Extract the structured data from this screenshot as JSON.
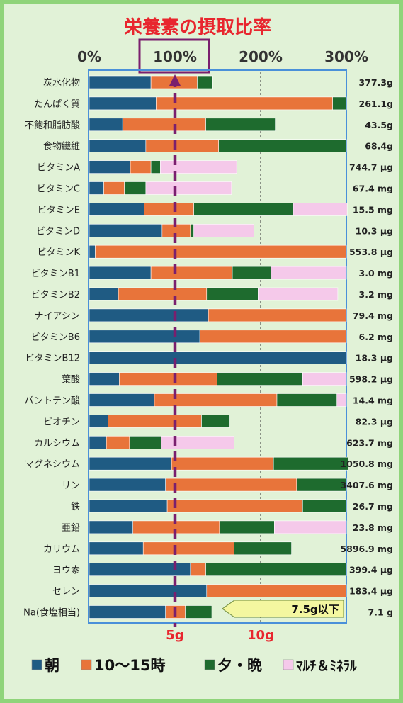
{
  "title": "栄養素の摂取比率",
  "x_ticks": [
    "0%",
    "100%",
    "200%",
    "300%"
  ],
  "salt_ticks": [
    "5g",
    "10g"
  ],
  "salt_target_label": "7.5g以下",
  "colors": {
    "morning": "#1f5b83",
    "midday": "#e8743a",
    "evening": "#1e6b2e",
    "multi": "#f5c9ea",
    "title": "#e8262e",
    "target_line": "#7a1f6e",
    "chart_border": "#4a90d9",
    "target_box_fill": "#f4f7a0"
  },
  "legend": [
    {
      "key": "morning",
      "label": "朝"
    },
    {
      "key": "midday",
      "label": "10～15時"
    },
    {
      "key": "evening",
      "label": "夕・晩"
    },
    {
      "key": "multi",
      "label": "ﾏﾙﾁ＆ﾐﾈﾗﾙ"
    }
  ],
  "chart_data": {
    "type": "bar",
    "orientation": "horizontal",
    "stacked": true,
    "title": "栄養素の摂取比率",
    "xlim": [
      0,
      300
    ],
    "x_unit": "%",
    "reference_line": 100,
    "grid": "vertical dashed at 200%",
    "legend_position": "bottom",
    "series_names": [
      "朝",
      "10～15時",
      "夕・晩",
      "ﾏﾙﾁ＆ﾐﾈﾗﾙ"
    ],
    "categories": [
      "炭水化物",
      "たんぱく質",
      "不飽和脂肪酸",
      "食物繊維",
      "ビタミンA",
      "ビタミンC",
      "ビタミンE",
      "ビタミンD",
      "ビタミンK",
      "ビタミンB1",
      "ビタミンB2",
      "ナイアシン",
      "ビタミンB6",
      "ビタミンB12",
      "葉酸",
      "パントテン酸",
      "ビオチン",
      "カルシウム",
      "マグネシウム",
      "リン",
      "鉄",
      "亜鉛",
      "カリウム",
      "ヨウ素",
      "セレン",
      "Na(食塩相当)"
    ],
    "amounts": [
      "377.3g",
      "261.1g",
      "43.5g",
      "68.4g",
      "744.7 μg",
      "67.4 mg",
      "15.5 mg",
      "10.3 μg",
      "553.8 μg",
      "3.0 mg",
      "3.2 mg",
      "79.4 mg",
      "6.2 mg",
      "18.3 μg",
      "598.2 μg",
      "14.4 mg",
      "82.3 μg",
      "623.7 mg",
      "1050.8 mg",
      "3407.6 mg",
      "26.7 mg",
      "23.8 mg",
      "5896.9 mg",
      "399.4 μg",
      "183.4 μg",
      "7.1 g"
    ],
    "series": [
      {
        "name": "朝",
        "values": [
          72,
          78,
          39,
          66,
          48,
          17,
          64,
          85,
          7,
          72,
          34,
          139,
          129,
          300,
          35,
          76,
          22,
          20,
          96,
          89,
          91,
          51,
          63,
          118,
          137,
          89
        ]
      },
      {
        "name": "10～15時",
        "values": [
          54,
          206,
          97,
          85,
          24,
          24,
          58,
          33,
          293,
          95,
          103,
          161,
          171,
          0,
          114,
          143,
          109,
          27,
          119,
          153,
          158,
          101,
          106,
          18,
          163,
          23
        ]
      },
      {
        "name": "夕・晩",
        "values": [
          18,
          16,
          81,
          149,
          11,
          25,
          116,
          4,
          0,
          45,
          60,
          0,
          0,
          0,
          100,
          70,
          33,
          37,
          87,
          58,
          51,
          64,
          67,
          164,
          0,
          31
        ]
      },
      {
        "name": "ﾏﾙﾁ＆ﾐﾈﾗﾙ",
        "values": [
          0,
          0,
          0,
          0,
          89,
          100,
          63,
          70,
          0,
          88,
          93,
          0,
          0,
          0,
          51,
          11,
          0,
          85,
          0,
          0,
          0,
          84,
          0,
          0,
          0,
          0
        ]
      }
    ]
  }
}
